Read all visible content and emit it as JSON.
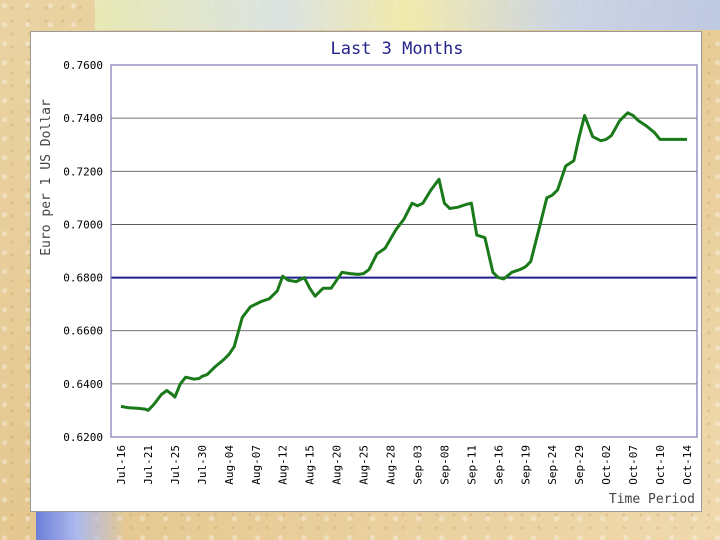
{
  "chart_data": {
    "type": "line",
    "title": "Last 3 Months",
    "xlabel": "Time Period",
    "ylabel": "Euro per 1 US Dollar",
    "ylim": [
      0.62,
      0.76
    ],
    "y_ticks": [
      "0.6200",
      "0.6400",
      "0.6600",
      "0.6800",
      "0.7000",
      "0.7200",
      "0.7400",
      "0.7600"
    ],
    "x_ticks": [
      "Jul-16",
      "Jul-21",
      "Jul-25",
      "Jul-30",
      "Aug-04",
      "Aug-07",
      "Aug-12",
      "Aug-15",
      "Aug-20",
      "Aug-25",
      "Aug-28",
      "Sep-03",
      "Sep-08",
      "Sep-11",
      "Sep-16",
      "Sep-19",
      "Sep-24",
      "Sep-29",
      "Oct-02",
      "Oct-07",
      "Oct-10",
      "Oct-14"
    ],
    "reference_line": 0.68,
    "grid": true,
    "line_color": "#1a7a1a",
    "series": [
      {
        "x": [
          0,
          0.3,
          0.6,
          0.9,
          1.0,
          1.2,
          1.5,
          1.7,
          1.9,
          2.0,
          2.2,
          2.4,
          2.7,
          2.9,
          3.0,
          3.2,
          3.5,
          3.8,
          4.0,
          4.2,
          4.5,
          4.8,
          5.0,
          5.2,
          5.5,
          5.8,
          6.0,
          6.2,
          6.5,
          6.8,
          7.0,
          7.2,
          7.5,
          7.8,
          8.0,
          8.2,
          8.5,
          8.8,
          9.0,
          9.2,
          9.5,
          9.8,
          10.0,
          10.2,
          10.5,
          10.8,
          11.0,
          11.2,
          11.5,
          11.8,
          12.0,
          12.2,
          12.5,
          12.8,
          13.0,
          13.2,
          13.5,
          13.8,
          14.0,
          14.2,
          14.5,
          14.8,
          15.0,
          15.2,
          15.4,
          15.6,
          15.8,
          16.0,
          16.2,
          16.5,
          16.8,
          17.0,
          17.2,
          17.5,
          17.8,
          18.0,
          18.2,
          18.5,
          18.8,
          19.0,
          19.2,
          19.5,
          19.8,
          20.0,
          20.2,
          20.5,
          20.8,
          21.0
        ],
        "y": [
          0.6315,
          0.631,
          0.6308,
          0.6305,
          0.63,
          0.632,
          0.636,
          0.6375,
          0.636,
          0.635,
          0.64,
          0.6425,
          0.6418,
          0.642,
          0.6428,
          0.6435,
          0.6465,
          0.649,
          0.651,
          0.654,
          0.665,
          0.669,
          0.67,
          0.671,
          0.672,
          0.675,
          0.6805,
          0.679,
          0.6785,
          0.68,
          0.676,
          0.673,
          0.676,
          0.676,
          0.679,
          0.682,
          0.6815,
          0.6812,
          0.6815,
          0.683,
          0.689,
          0.691,
          0.6945,
          0.698,
          0.702,
          0.708,
          0.707,
          0.708,
          0.713,
          0.717,
          0.708,
          0.706,
          0.7065,
          0.7075,
          0.708,
          0.696,
          0.695,
          0.682,
          0.68,
          0.6795,
          0.682,
          0.683,
          0.684,
          0.686,
          0.694,
          0.702,
          0.71,
          0.711,
          0.713,
          0.722,
          0.724,
          0.733,
          0.741,
          0.733,
          0.7315,
          0.732,
          0.7335,
          0.739,
          0.742,
          0.741,
          0.739,
          0.737,
          0.7345,
          0.732,
          0.732,
          0.732,
          0.732,
          0.732
        ]
      }
    ]
  }
}
